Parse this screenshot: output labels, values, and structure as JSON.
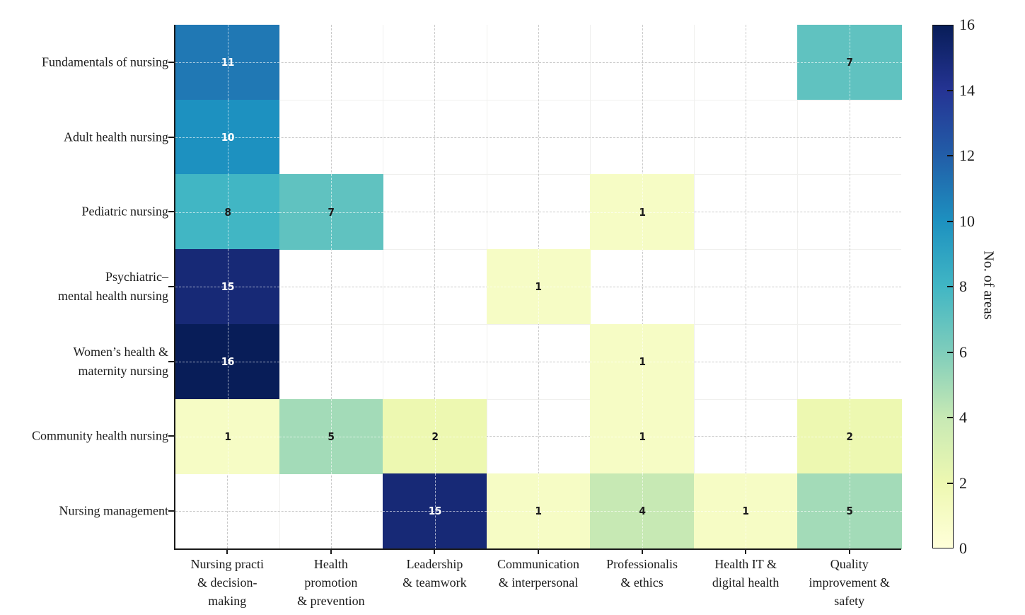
{
  "figure": {
    "background": "#ffffff"
  },
  "chart_data": {
    "type": "heatmap",
    "title": "",
    "rows": [
      "Fundamentals of nursing",
      "Adult health nursing",
      "Pediatric nursing",
      "Psychiatric–\nmental health nursing",
      "Women’s health &\nmaternity nursing",
      "Community health nursing",
      "Nursing management"
    ],
    "columns": [
      "Nursing practi\n& decision-\nmaking",
      "Health\npromotion\n& prevention",
      "Leadership\n& teamwork",
      "Communication\n& interpersonal",
      "Professionalis\n& ethics",
      "Health IT &\ndigital health",
      "Quality\nimprovement &\nsafety"
    ],
    "values": [
      [
        11,
        null,
        null,
        null,
        null,
        null,
        7
      ],
      [
        10,
        null,
        null,
        null,
        null,
        null,
        null
      ],
      [
        8,
        7,
        null,
        null,
        1,
        null,
        null
      ],
      [
        15,
        null,
        null,
        1,
        null,
        null,
        null
      ],
      [
        16,
        null,
        null,
        null,
        1,
        null,
        null
      ],
      [
        1,
        5,
        2,
        null,
        1,
        null,
        2
      ],
      [
        null,
        null,
        15,
        1,
        4,
        1,
        5
      ]
    ],
    "vmin": 0,
    "vmax": 16,
    "grid": true,
    "colormap": {
      "name": "YlGnBu",
      "anchors": [
        "#ffffd9",
        "#edf8b1",
        "#c7e9b4",
        "#7fcdbb",
        "#41b6c4",
        "#1d91c0",
        "#225ea8",
        "#253494",
        "#081d58"
      ]
    },
    "colorbar": {
      "label": "No. of areas",
      "ticks": [
        0,
        2,
        4,
        6,
        8,
        10,
        12,
        14,
        16
      ],
      "position": "right"
    },
    "styles": {
      "grid_color": "#c9c9c9",
      "cell_cross_color": "rgba(255,255,255,0.62)",
      "spine_color": "#1a1a1a",
      "text_color": "#1a1a1a",
      "value_text_light": "#ffffff",
      "value_text_dark": "#1a1a1a"
    }
  }
}
